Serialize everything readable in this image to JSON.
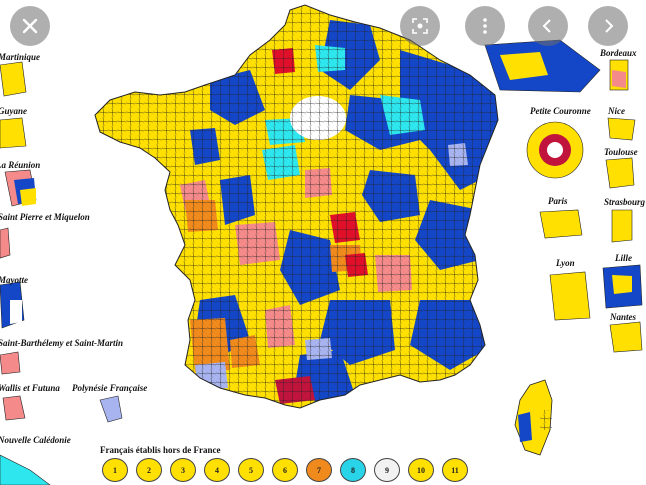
{
  "overlay": {
    "close_icon": "close-icon",
    "lens_icon": "lens-icon",
    "prev_icon": "chevron-left-icon",
    "next_icon": "chevron-right-icon"
  },
  "labels": {
    "martinique": "Martinique",
    "guyane": "Guyane",
    "reunion": "La Réunion",
    "spm": "Saint Pierre et Miquelon",
    "mayotte": "Mayotte",
    "sbsm": "Saint-Barthélemy et Saint-Martin",
    "wallis": "Wallis et Futuna",
    "polynesie": "Polynésie Française",
    "caledonie": "Nouvelle Calédonie",
    "bordeaux": "Bordeaux",
    "petite_couronne": "Petite Couronne",
    "nice": "Nice",
    "toulouse": "Toulouse",
    "paris": "Paris",
    "strasbourg": "Strasbourg",
    "lyon": "Lyon",
    "lille": "Lille",
    "nantes": "Nantes"
  },
  "legend": {
    "title": "Français établis hors de France",
    "items": [
      {
        "label": "1",
        "color": "#ffe000"
      },
      {
        "label": "2",
        "color": "#ffe000"
      },
      {
        "label": "3",
        "color": "#ffe000"
      },
      {
        "label": "4",
        "color": "#ffe000"
      },
      {
        "label": "5",
        "color": "#ffe000"
      },
      {
        "label": "6",
        "color": "#ffe000"
      },
      {
        "label": "7",
        "color": "#f08a1c"
      },
      {
        "label": "8",
        "color": "#2ad4e8"
      },
      {
        "label": "9",
        "color": "#f2f2f2"
      },
      {
        "label": "10",
        "color": "#ffe000"
      },
      {
        "label": "11",
        "color": "#ffe000"
      }
    ]
  },
  "palette": {
    "yellow": "#ffe000",
    "blue": "#1447c8",
    "cyan": "#2ee6ee",
    "pink": "#f48a8a",
    "orange": "#f08a1c",
    "red": "#e0102a",
    "lavender": "#a8b4f0",
    "crimson": "#c0143c"
  }
}
